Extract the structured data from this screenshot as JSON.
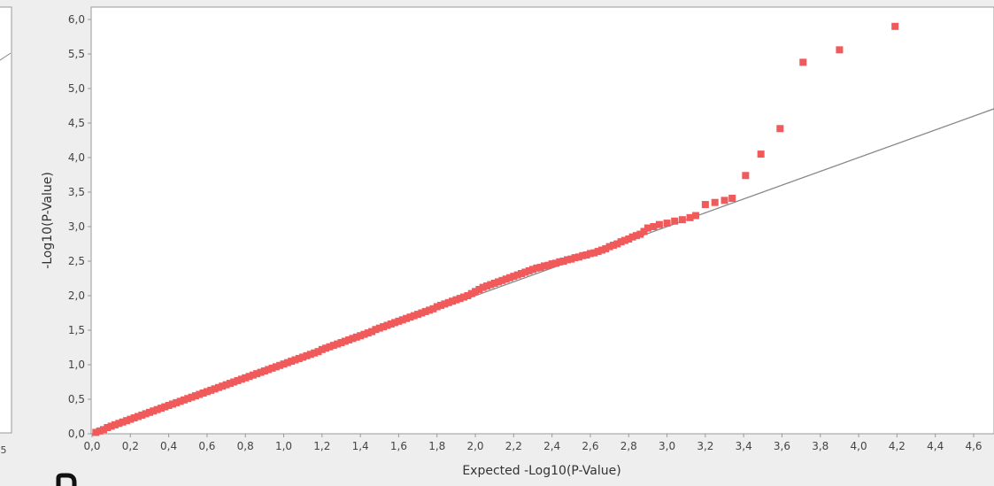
{
  "chart_data": {
    "type": "scatter",
    "title": "",
    "xlabel": "Expected -Log10(P-Value)",
    "ylabel": "-Log10(P-Value)",
    "xlim": [
      0.0,
      4.6
    ],
    "ylim": [
      0.0,
      6.0
    ],
    "xticks": [
      "0,0",
      "0,2",
      "0,4",
      "0,6",
      "0,8",
      "1,0",
      "1,2",
      "1,4",
      "1,6",
      "1,8",
      "2,0",
      "2,2",
      "2,4",
      "2,6",
      "2,8",
      "3,0",
      "3,2",
      "3,4",
      "3,6",
      "3,8",
      "4,0",
      "4,2",
      "4,4",
      "4,6"
    ],
    "yticks": [
      "0,0",
      "0,5",
      "1,0",
      "1,5",
      "2,0",
      "2,5",
      "3,0",
      "3,5",
      "4,0",
      "4,5",
      "5,0",
      "5,5",
      "6,0"
    ],
    "left_panel_tick": "5",
    "grid": false,
    "colors": {
      "points": "#f05a5a",
      "reference_line": "#888888",
      "axis": "#999999",
      "background": "#ffffff",
      "frame": "#eeeeee"
    },
    "reference_line": {
      "x": [
        0.0,
        4.6
      ],
      "y": [
        0.0,
        4.6
      ]
    },
    "series": [
      {
        "points": [
          [
            0.02,
            0.02
          ],
          [
            0.04,
            0.04
          ],
          [
            0.06,
            0.06
          ],
          [
            0.08,
            0.09
          ],
          [
            0.1,
            0.11
          ],
          [
            0.12,
            0.13
          ],
          [
            0.14,
            0.15
          ],
          [
            0.16,
            0.17
          ],
          [
            0.18,
            0.19
          ],
          [
            0.2,
            0.21
          ],
          [
            0.22,
            0.23
          ],
          [
            0.24,
            0.25
          ],
          [
            0.26,
            0.27
          ],
          [
            0.28,
            0.29
          ],
          [
            0.3,
            0.31
          ],
          [
            0.32,
            0.33
          ],
          [
            0.34,
            0.35
          ],
          [
            0.36,
            0.37
          ],
          [
            0.38,
            0.39
          ],
          [
            0.4,
            0.41
          ],
          [
            0.42,
            0.43
          ],
          [
            0.44,
            0.45
          ],
          [
            0.46,
            0.47
          ],
          [
            0.48,
            0.49
          ],
          [
            0.5,
            0.51
          ],
          [
            0.52,
            0.53
          ],
          [
            0.54,
            0.55
          ],
          [
            0.56,
            0.57
          ],
          [
            0.58,
            0.59
          ],
          [
            0.6,
            0.61
          ],
          [
            0.62,
            0.63
          ],
          [
            0.64,
            0.65
          ],
          [
            0.66,
            0.67
          ],
          [
            0.68,
            0.69
          ],
          [
            0.7,
            0.71
          ],
          [
            0.72,
            0.73
          ],
          [
            0.74,
            0.75
          ],
          [
            0.76,
            0.77
          ],
          [
            0.78,
            0.79
          ],
          [
            0.8,
            0.81
          ],
          [
            0.82,
            0.83
          ],
          [
            0.84,
            0.85
          ],
          [
            0.86,
            0.87
          ],
          [
            0.88,
            0.89
          ],
          [
            0.9,
            0.91
          ],
          [
            0.92,
            0.93
          ],
          [
            0.94,
            0.95
          ],
          [
            0.96,
            0.97
          ],
          [
            0.98,
            0.99
          ],
          [
            1.0,
            1.01
          ],
          [
            1.02,
            1.03
          ],
          [
            1.04,
            1.05
          ],
          [
            1.06,
            1.07
          ],
          [
            1.08,
            1.09
          ],
          [
            1.1,
            1.11
          ],
          [
            1.12,
            1.13
          ],
          [
            1.14,
            1.15
          ],
          [
            1.16,
            1.17
          ],
          [
            1.18,
            1.19
          ],
          [
            1.2,
            1.22
          ],
          [
            1.22,
            1.24
          ],
          [
            1.24,
            1.26
          ],
          [
            1.26,
            1.28
          ],
          [
            1.28,
            1.3
          ],
          [
            1.3,
            1.32
          ],
          [
            1.32,
            1.34
          ],
          [
            1.34,
            1.36
          ],
          [
            1.36,
            1.38
          ],
          [
            1.38,
            1.4
          ],
          [
            1.4,
            1.42
          ],
          [
            1.42,
            1.44
          ],
          [
            1.44,
            1.46
          ],
          [
            1.46,
            1.48
          ],
          [
            1.48,
            1.51
          ],
          [
            1.5,
            1.53
          ],
          [
            1.52,
            1.55
          ],
          [
            1.54,
            1.57
          ],
          [
            1.56,
            1.59
          ],
          [
            1.58,
            1.61
          ],
          [
            1.6,
            1.63
          ],
          [
            1.62,
            1.65
          ],
          [
            1.64,
            1.67
          ],
          [
            1.66,
            1.69
          ],
          [
            1.68,
            1.71
          ],
          [
            1.7,
            1.73
          ],
          [
            1.72,
            1.75
          ],
          [
            1.74,
            1.77
          ],
          [
            1.76,
            1.79
          ],
          [
            1.78,
            1.81
          ],
          [
            1.8,
            1.84
          ],
          [
            1.82,
            1.86
          ],
          [
            1.84,
            1.88
          ],
          [
            1.86,
            1.9
          ],
          [
            1.88,
            1.92
          ],
          [
            1.9,
            1.94
          ],
          [
            1.92,
            1.96
          ],
          [
            1.94,
            1.98
          ],
          [
            1.96,
            2.0
          ],
          [
            1.98,
            2.03
          ],
          [
            2.0,
            2.06
          ],
          [
            2.02,
            2.09
          ],
          [
            2.04,
            2.12
          ],
          [
            2.06,
            2.14
          ],
          [
            2.08,
            2.16
          ],
          [
            2.1,
            2.18
          ],
          [
            2.12,
            2.2
          ],
          [
            2.14,
            2.22
          ],
          [
            2.16,
            2.24
          ],
          [
            2.18,
            2.26
          ],
          [
            2.2,
            2.28
          ],
          [
            2.22,
            2.3
          ],
          [
            2.24,
            2.32
          ],
          [
            2.26,
            2.34
          ],
          [
            2.28,
            2.36
          ],
          [
            2.3,
            2.38
          ],
          [
            2.32,
            2.4
          ],
          [
            2.34,
            2.41
          ],
          [
            2.36,
            2.43
          ],
          [
            2.38,
            2.44
          ],
          [
            2.4,
            2.46
          ],
          [
            2.42,
            2.47
          ],
          [
            2.44,
            2.49
          ],
          [
            2.46,
            2.5
          ],
          [
            2.48,
            2.52
          ],
          [
            2.5,
            2.53
          ],
          [
            2.52,
            2.55
          ],
          [
            2.54,
            2.56
          ],
          [
            2.56,
            2.58
          ],
          [
            2.58,
            2.59
          ],
          [
            2.6,
            2.61
          ],
          [
            2.62,
            2.62
          ],
          [
            2.64,
            2.64
          ],
          [
            2.66,
            2.66
          ],
          [
            2.68,
            2.68
          ],
          [
            2.7,
            2.71
          ],
          [
            2.72,
            2.73
          ],
          [
            2.74,
            2.75
          ],
          [
            2.76,
            2.78
          ],
          [
            2.78,
            2.8
          ],
          [
            2.8,
            2.82
          ],
          [
            2.82,
            2.85
          ],
          [
            2.84,
            2.87
          ],
          [
            2.86,
            2.89
          ],
          [
            2.88,
            2.93
          ],
          [
            2.9,
            2.98
          ],
          [
            2.93,
            3.0
          ],
          [
            2.96,
            3.03
          ],
          [
            3.0,
            3.05
          ],
          [
            3.04,
            3.08
          ],
          [
            3.08,
            3.1
          ],
          [
            3.12,
            3.13
          ],
          [
            3.15,
            3.16
          ],
          [
            3.2,
            3.32
          ],
          [
            3.25,
            3.35
          ],
          [
            3.3,
            3.38
          ],
          [
            3.34,
            3.41
          ],
          [
            3.41,
            3.74
          ],
          [
            3.49,
            4.05
          ],
          [
            3.59,
            4.42
          ],
          [
            3.71,
            5.38
          ],
          [
            3.9,
            5.56
          ],
          [
            4.19,
            5.9
          ]
        ]
      }
    ]
  }
}
